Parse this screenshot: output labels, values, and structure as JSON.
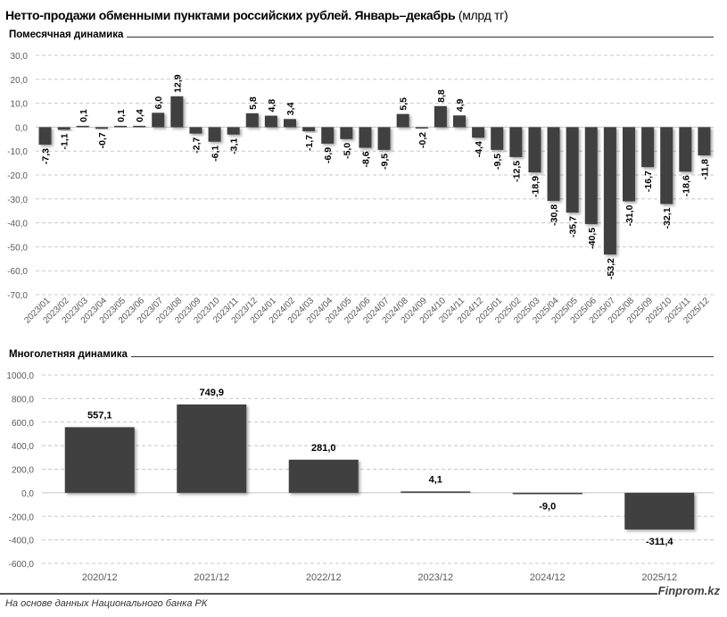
{
  "title": "Нетто-продажи обменными пунктами российских рублей. Январь–декабрь",
  "title_unit": "(млрд тг)",
  "footer": {
    "source": "На основе данных Национального банка РК",
    "brand": "Finprom.kz"
  },
  "colors": {
    "bar": "#404040",
    "grid": "#c8c8c8",
    "axis_text": "#595959"
  },
  "chart_data": [
    {
      "type": "bar",
      "title": "Помесячная динамика",
      "xlabel": "",
      "ylabel": "",
      "ylim": [
        -70,
        30
      ],
      "yticks": [
        30,
        20,
        10,
        0,
        -10,
        -20,
        -30,
        -40,
        -50,
        -60,
        -70
      ],
      "ytick_labels": [
        "30,0",
        "20,0",
        "10,0",
        "0,0",
        "-10,0",
        "-20,0",
        "-30,0",
        "-40,0",
        "-50,0",
        "-60,0",
        "-70,0"
      ],
      "grid": true,
      "categories": [
        "2023/01",
        "2023/02",
        "2023/03",
        "2023/04",
        "2023/05",
        "2023/06",
        "2023/07",
        "2023/08",
        "2023/09",
        "2023/10",
        "2023/11",
        "2023/12",
        "2024/01",
        "2024/02",
        "2024/03",
        "2024/04",
        "2024/05",
        "2024/06",
        "2024/07",
        "2024/08",
        "2024/09",
        "2024/10",
        "2024/11",
        "2024/12",
        "2025/01",
        "2025/02",
        "2025/03",
        "2025/04",
        "2025/05",
        "2025/06",
        "2025/07",
        "2025/08",
        "2025/09",
        "2025/10",
        "2025/11",
        "2025/12"
      ],
      "values": [
        -7.3,
        -1.1,
        0.1,
        -0.7,
        0.1,
        0.4,
        6.0,
        12.9,
        -2.7,
        -6.1,
        -3.1,
        5.8,
        4.8,
        3.4,
        -1.7,
        -6.9,
        -5.0,
        -8.6,
        -9.5,
        5.5,
        -0.2,
        8.8,
        4.9,
        -4.4,
        -9.5,
        -12.5,
        -18.9,
        -30.8,
        -35.7,
        -40.5,
        -53.2,
        -31.0,
        -16.7,
        -32.1,
        -18.6,
        -11.8
      ],
      "labels": [
        "-7,3",
        "-1,1",
        "0,1",
        "-0,7",
        "0,1",
        "0,4",
        "6,0",
        "12,9",
        "-2,7",
        "-6,1",
        "-3,1",
        "5,8",
        "4,8",
        "3,4",
        "-1,7",
        "-6,9",
        "-5,0",
        "-8,6",
        "-9,5",
        "5,5",
        "-0,2",
        "8,8",
        "4,9",
        "-4,4",
        "-9,5",
        "-12,5",
        "-18,9",
        "-30,8",
        "-35,7",
        "-40,5",
        "-53,2",
        "-31,0",
        "-16,7",
        "-32,1",
        "-18,6",
        "-11,8"
      ]
    },
    {
      "type": "bar",
      "title": "Многолетняя динамика",
      "xlabel": "",
      "ylabel": "",
      "ylim": [
        -600,
        1000
      ],
      "yticks": [
        1000,
        800,
        600,
        400,
        200,
        0,
        -200,
        -400,
        -600
      ],
      "ytick_labels": [
        "1000,0",
        "800,0",
        "600,0",
        "400,0",
        "200,0",
        "0,0",
        "-200,0",
        "-400,0",
        "-600,0"
      ],
      "grid": true,
      "categories": [
        "2020/12",
        "2021/12",
        "2022/12",
        "2023/12",
        "2024/12",
        "2025/12"
      ],
      "values": [
        557.1,
        749.9,
        281.0,
        4.1,
        -9.0,
        -311.4
      ],
      "labels": [
        "557,1",
        "749,9",
        "281,0",
        "4,1",
        "-9,0",
        "-311,4"
      ]
    }
  ]
}
